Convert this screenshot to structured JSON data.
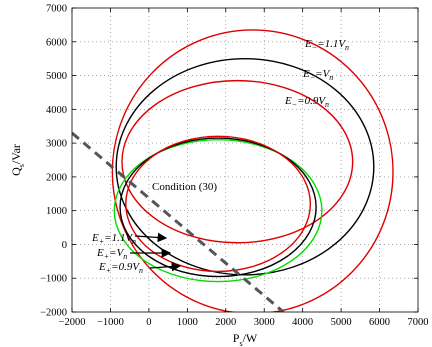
{
  "chart_data": {
    "type": "line",
    "xlabel": "P_s/W",
    "ylabel": "Q_s/Var",
    "xlim": [
      -2000,
      7000
    ],
    "ylim": [
      -2000,
      7000
    ],
    "x_ticks": [
      -2000,
      -1000,
      0,
      1000,
      2000,
      3000,
      4000,
      5000,
      6000,
      7000
    ],
    "y_ticks": [
      -2000,
      -1000,
      0,
      1000,
      2000,
      3000,
      4000,
      5000,
      6000,
      7000
    ],
    "grid": true,
    "curves": [
      {
        "name": "E_-=1.1V_n",
        "color": "#e00000",
        "center": [
          2700,
          2150
        ],
        "radius_x": 3650,
        "radius_y": 4200
      },
      {
        "name": "E_-=V_n",
        "color": "#000000",
        "center": [
          2500,
          2300
        ],
        "radius_x": 3350,
        "radius_y": 3200
      },
      {
        "name": "E_-=0.9V_n",
        "color": "#e00000",
        "center": [
          2300,
          2450
        ],
        "radius_x": 3000,
        "radius_y": 2400
      },
      {
        "name": "E_+=1.1V_n",
        "color": "#00dd00",
        "center": [
          1800,
          1000
        ],
        "radius_x": 2700,
        "radius_y": 2100
      },
      {
        "name": "E_+=V_n",
        "color": "#000000",
        "center": [
          1800,
          1100
        ],
        "radius_x": 2550,
        "radius_y": 2050
      },
      {
        "name": "E_+=0.9V_n",
        "color": "#e00000",
        "center": [
          1800,
          1200
        ],
        "radius_x": 2400,
        "radius_y": 2000
      }
    ],
    "condition_line": {
      "label": "Condition (30)",
      "points": [
        [
          -2000,
          3300
        ],
        [
          3500,
          -2000
        ]
      ],
      "color": "#555555",
      "style": "dashed"
    },
    "annotations": [
      {
        "text_main": "E",
        "sub": "−",
        "text_rest": "=1.1V",
        "sub2": "n"
      },
      {
        "text_main": "E",
        "sub": "−",
        "text_rest": "=V",
        "sub2": "n"
      },
      {
        "text_main": "E",
        "sub": "−",
        "text_rest": "=0.9V",
        "sub2": "n"
      },
      {
        "text_main": "E",
        "sub": "+",
        "text_rest": "=1.1V",
        "sub2": "n"
      },
      {
        "text_main": "E",
        "sub": "+",
        "text_rest": "=V",
        "sub2": "n"
      },
      {
        "text_main": "E",
        "sub": "+",
        "text_rest": "=0.9V",
        "sub2": "n"
      }
    ]
  },
  "axis_labels": {
    "x_main": "P",
    "x_sub": "s",
    "x_rest": "/W",
    "y_main": "Q",
    "y_sub": "s",
    "y_rest": "/Var"
  }
}
